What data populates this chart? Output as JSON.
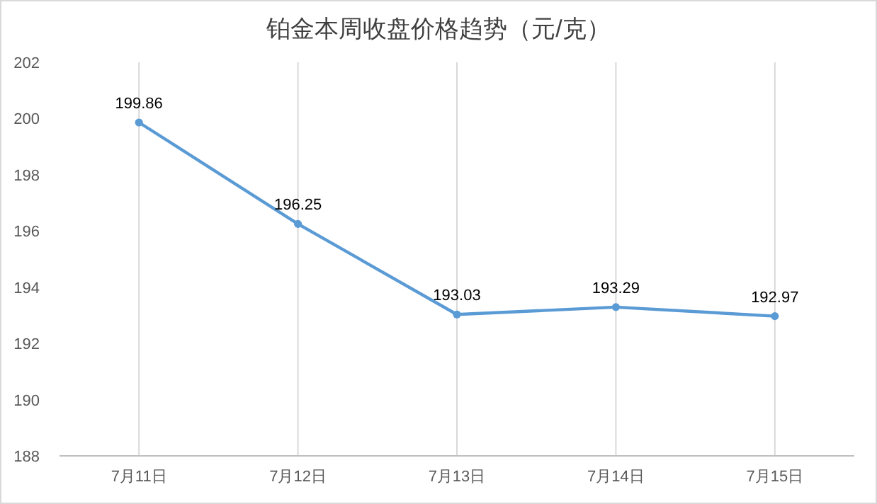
{
  "chart_data": {
    "type": "line",
    "title": "铂金本周收盘价格趋势（元/克）",
    "categories": [
      "7月11日",
      "7月12日",
      "7月13日",
      "7月14日",
      "7月15日"
    ],
    "series": [
      {
        "color": "#5b9bd5",
        "values": [
          199.86,
          196.25,
          193.03,
          193.29,
          192.97
        ]
      }
    ],
    "ylim": [
      188,
      202
    ],
    "yticks": [
      188,
      190,
      192,
      194,
      196,
      198,
      200,
      202
    ],
    "grid": "x",
    "marker": "circle",
    "line_style": "solid",
    "data_labels": true
  }
}
